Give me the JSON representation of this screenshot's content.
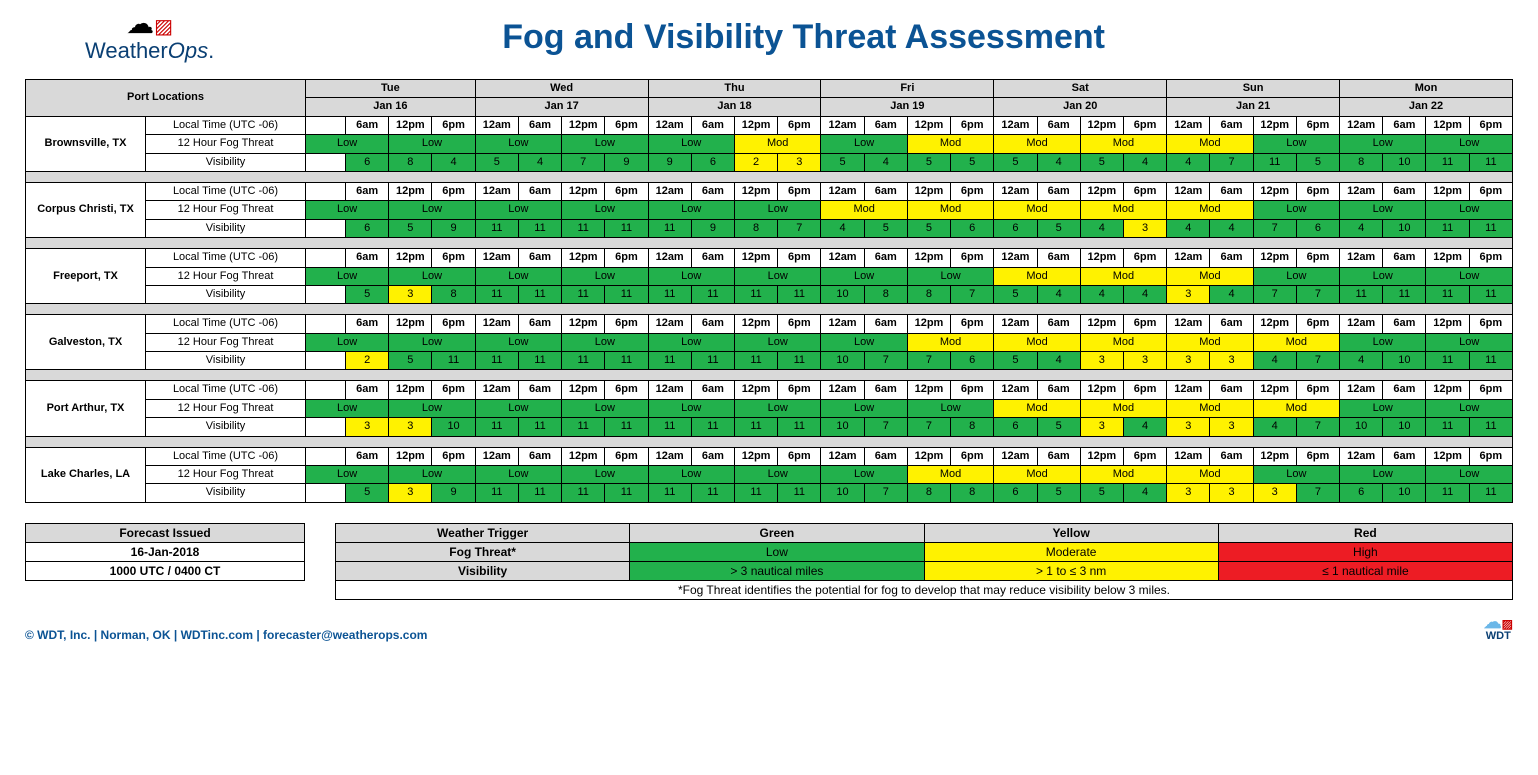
{
  "header": {
    "logo_primary": "Weather",
    "logo_secondary": "Ops",
    "title": "Fog and Visibility Threat Assessment"
  },
  "columns": {
    "port_locations": "Port Locations",
    "days": [
      {
        "name": "Tue",
        "date": "Jan 16",
        "times": [
          "6am",
          "12pm",
          "6pm"
        ]
      },
      {
        "name": "Wed",
        "date": "Jan 17",
        "times": [
          "12am",
          "6am",
          "12pm",
          "6pm"
        ]
      },
      {
        "name": "Thu",
        "date": "Jan 18",
        "times": [
          "12am",
          "6am",
          "12pm",
          "6pm"
        ]
      },
      {
        "name": "Fri",
        "date": "Jan 19",
        "times": [
          "12am",
          "6am",
          "12pm",
          "6pm"
        ]
      },
      {
        "name": "Sat",
        "date": "Jan 20",
        "times": [
          "12am",
          "6am",
          "12pm",
          "6pm"
        ]
      },
      {
        "name": "Sun",
        "date": "Jan 21",
        "times": [
          "12am",
          "6am",
          "12pm",
          "6pm"
        ]
      },
      {
        "name": "Mon",
        "date": "Jan 22",
        "times": [
          "12am",
          "6am",
          "12pm",
          "6pm"
        ]
      }
    ]
  },
  "row_labels": {
    "time": "Local Time (UTC -06)",
    "fog": "12 Hour Fog Threat",
    "vis": "Visibility"
  },
  "ports": [
    {
      "name": "Brownsville, TX",
      "fog": [
        [
          "Low",
          "g"
        ],
        [
          "Low",
          "g"
        ],
        [
          "Low",
          "g"
        ],
        [
          "Low",
          "g"
        ],
        [
          "Low",
          "g"
        ],
        [
          "Mod",
          "y"
        ],
        [
          "Low",
          "g"
        ],
        [
          "Mod",
          "y"
        ],
        [
          "Mod",
          "y"
        ],
        [
          "Mod",
          "y"
        ],
        [
          "Mod",
          "y"
        ],
        [
          "Low",
          "g"
        ],
        [
          "Low",
          "g"
        ],
        [
          "Low",
          "g"
        ]
      ],
      "vis": [
        [
          "6",
          "g"
        ],
        [
          "8",
          "g"
        ],
        [
          "4",
          "g"
        ],
        [
          "5",
          "g"
        ],
        [
          "4",
          "g"
        ],
        [
          "7",
          "g"
        ],
        [
          "9",
          "g"
        ],
        [
          "9",
          "g"
        ],
        [
          "6",
          "g"
        ],
        [
          "2",
          "y"
        ],
        [
          "3",
          "y"
        ],
        [
          "5",
          "g"
        ],
        [
          "4",
          "g"
        ],
        [
          "5",
          "g"
        ],
        [
          "5",
          "g"
        ],
        [
          "5",
          "g"
        ],
        [
          "4",
          "g"
        ],
        [
          "5",
          "g"
        ],
        [
          "4",
          "g"
        ],
        [
          "4",
          "g"
        ],
        [
          "7",
          "g"
        ],
        [
          "11",
          "g"
        ],
        [
          "5",
          "g"
        ],
        [
          "8",
          "g"
        ],
        [
          "10",
          "g"
        ],
        [
          "11",
          "g"
        ],
        [
          "11",
          "g"
        ]
      ]
    },
    {
      "name": "Corpus Christi, TX",
      "fog": [
        [
          "Low",
          "g"
        ],
        [
          "Low",
          "g"
        ],
        [
          "Low",
          "g"
        ],
        [
          "Low",
          "g"
        ],
        [
          "Low",
          "g"
        ],
        [
          "Low",
          "g"
        ],
        [
          "Mod",
          "y"
        ],
        [
          "Mod",
          "y"
        ],
        [
          "Mod",
          "y"
        ],
        [
          "Mod",
          "y"
        ],
        [
          "Mod",
          "y"
        ],
        [
          "Low",
          "g"
        ],
        [
          "Low",
          "g"
        ],
        [
          "Low",
          "g"
        ]
      ],
      "vis": [
        [
          "6",
          "g"
        ],
        [
          "5",
          "g"
        ],
        [
          "9",
          "g"
        ],
        [
          "11",
          "g"
        ],
        [
          "11",
          "g"
        ],
        [
          "11",
          "g"
        ],
        [
          "11",
          "g"
        ],
        [
          "11",
          "g"
        ],
        [
          "9",
          "g"
        ],
        [
          "8",
          "g"
        ],
        [
          "7",
          "g"
        ],
        [
          "4",
          "g"
        ],
        [
          "5",
          "g"
        ],
        [
          "5",
          "g"
        ],
        [
          "6",
          "g"
        ],
        [
          "6",
          "g"
        ],
        [
          "5",
          "g"
        ],
        [
          "4",
          "g"
        ],
        [
          "3",
          "y"
        ],
        [
          "4",
          "g"
        ],
        [
          "4",
          "g"
        ],
        [
          "7",
          "g"
        ],
        [
          "6",
          "g"
        ],
        [
          "4",
          "g"
        ],
        [
          "10",
          "g"
        ],
        [
          "11",
          "g"
        ],
        [
          "11",
          "g"
        ]
      ]
    },
    {
      "name": "Freeport, TX",
      "fog": [
        [
          "Low",
          "g"
        ],
        [
          "Low",
          "g"
        ],
        [
          "Low",
          "g"
        ],
        [
          "Low",
          "g"
        ],
        [
          "Low",
          "g"
        ],
        [
          "Low",
          "g"
        ],
        [
          "Low",
          "g"
        ],
        [
          "Low",
          "g"
        ],
        [
          "Mod",
          "y"
        ],
        [
          "Mod",
          "y"
        ],
        [
          "Mod",
          "y"
        ],
        [
          "Low",
          "g"
        ],
        [
          "Low",
          "g"
        ],
        [
          "Low",
          "g"
        ]
      ],
      "vis": [
        [
          "5",
          "g"
        ],
        [
          "3",
          "y"
        ],
        [
          "8",
          "g"
        ],
        [
          "11",
          "g"
        ],
        [
          "11",
          "g"
        ],
        [
          "11",
          "g"
        ],
        [
          "11",
          "g"
        ],
        [
          "11",
          "g"
        ],
        [
          "11",
          "g"
        ],
        [
          "11",
          "g"
        ],
        [
          "11",
          "g"
        ],
        [
          "10",
          "g"
        ],
        [
          "8",
          "g"
        ],
        [
          "8",
          "g"
        ],
        [
          "7",
          "g"
        ],
        [
          "5",
          "g"
        ],
        [
          "4",
          "g"
        ],
        [
          "4",
          "g"
        ],
        [
          "4",
          "g"
        ],
        [
          "3",
          "y"
        ],
        [
          "4",
          "g"
        ],
        [
          "7",
          "g"
        ],
        [
          "7",
          "g"
        ],
        [
          "11",
          "g"
        ],
        [
          "11",
          "g"
        ],
        [
          "11",
          "g"
        ],
        [
          "11",
          "g"
        ]
      ]
    },
    {
      "name": "Galveston, TX",
      "fog": [
        [
          "Low",
          "g"
        ],
        [
          "Low",
          "g"
        ],
        [
          "Low",
          "g"
        ],
        [
          "Low",
          "g"
        ],
        [
          "Low",
          "g"
        ],
        [
          "Low",
          "g"
        ],
        [
          "Low",
          "g"
        ],
        [
          "Mod",
          "y"
        ],
        [
          "Mod",
          "y"
        ],
        [
          "Mod",
          "y"
        ],
        [
          "Mod",
          "y"
        ],
        [
          "Mod",
          "y"
        ],
        [
          "Low",
          "g"
        ],
        [
          "Low",
          "g"
        ]
      ],
      "vis": [
        [
          "2",
          "y"
        ],
        [
          "5",
          "g"
        ],
        [
          "11",
          "g"
        ],
        [
          "11",
          "g"
        ],
        [
          "11",
          "g"
        ],
        [
          "11",
          "g"
        ],
        [
          "11",
          "g"
        ],
        [
          "11",
          "g"
        ],
        [
          "11",
          "g"
        ],
        [
          "11",
          "g"
        ],
        [
          "11",
          "g"
        ],
        [
          "10",
          "g"
        ],
        [
          "7",
          "g"
        ],
        [
          "7",
          "g"
        ],
        [
          "6",
          "g"
        ],
        [
          "5",
          "g"
        ],
        [
          "4",
          "g"
        ],
        [
          "3",
          "y"
        ],
        [
          "3",
          "y"
        ],
        [
          "3",
          "y"
        ],
        [
          "3",
          "y"
        ],
        [
          "4",
          "g"
        ],
        [
          "7",
          "g"
        ],
        [
          "4",
          "g"
        ],
        [
          "10",
          "g"
        ],
        [
          "11",
          "g"
        ],
        [
          "11",
          "g"
        ]
      ]
    },
    {
      "name": "Port Arthur, TX",
      "fog": [
        [
          "Low",
          "g"
        ],
        [
          "Low",
          "g"
        ],
        [
          "Low",
          "g"
        ],
        [
          "Low",
          "g"
        ],
        [
          "Low",
          "g"
        ],
        [
          "Low",
          "g"
        ],
        [
          "Low",
          "g"
        ],
        [
          "Low",
          "g"
        ],
        [
          "Mod",
          "y"
        ],
        [
          "Mod",
          "y"
        ],
        [
          "Mod",
          "y"
        ],
        [
          "Mod",
          "y"
        ],
        [
          "Low",
          "g"
        ],
        [
          "Low",
          "g"
        ]
      ],
      "vis": [
        [
          "3",
          "y"
        ],
        [
          "3",
          "y"
        ],
        [
          "10",
          "g"
        ],
        [
          "11",
          "g"
        ],
        [
          "11",
          "g"
        ],
        [
          "11",
          "g"
        ],
        [
          "11",
          "g"
        ],
        [
          "11",
          "g"
        ],
        [
          "11",
          "g"
        ],
        [
          "11",
          "g"
        ],
        [
          "11",
          "g"
        ],
        [
          "10",
          "g"
        ],
        [
          "7",
          "g"
        ],
        [
          "7",
          "g"
        ],
        [
          "8",
          "g"
        ],
        [
          "6",
          "g"
        ],
        [
          "5",
          "g"
        ],
        [
          "3",
          "y"
        ],
        [
          "4",
          "g"
        ],
        [
          "3",
          "y"
        ],
        [
          "3",
          "y"
        ],
        [
          "4",
          "g"
        ],
        [
          "7",
          "g"
        ],
        [
          "10",
          "g"
        ],
        [
          "10",
          "g"
        ],
        [
          "11",
          "g"
        ],
        [
          "11",
          "g"
        ]
      ]
    },
    {
      "name": "Lake Charles, LA",
      "fog": [
        [
          "Low",
          "g"
        ],
        [
          "Low",
          "g"
        ],
        [
          "Low",
          "g"
        ],
        [
          "Low",
          "g"
        ],
        [
          "Low",
          "g"
        ],
        [
          "Low",
          "g"
        ],
        [
          "Low",
          "g"
        ],
        [
          "Mod",
          "y"
        ],
        [
          "Mod",
          "y"
        ],
        [
          "Mod",
          "y"
        ],
        [
          "Mod",
          "y"
        ],
        [
          "Low",
          "g"
        ],
        [
          "Low",
          "g"
        ],
        [
          "Low",
          "g"
        ]
      ],
      "vis": [
        [
          "5",
          "g"
        ],
        [
          "3",
          "y"
        ],
        [
          "9",
          "g"
        ],
        [
          "11",
          "g"
        ],
        [
          "11",
          "g"
        ],
        [
          "11",
          "g"
        ],
        [
          "11",
          "g"
        ],
        [
          "11",
          "g"
        ],
        [
          "11",
          "g"
        ],
        [
          "11",
          "g"
        ],
        [
          "11",
          "g"
        ],
        [
          "10",
          "g"
        ],
        [
          "7",
          "g"
        ],
        [
          "8",
          "g"
        ],
        [
          "8",
          "g"
        ],
        [
          "6",
          "g"
        ],
        [
          "5",
          "g"
        ],
        [
          "5",
          "g"
        ],
        [
          "4",
          "g"
        ],
        [
          "3",
          "y"
        ],
        [
          "3",
          "y"
        ],
        [
          "3",
          "y"
        ],
        [
          "7",
          "g"
        ],
        [
          "6",
          "g"
        ],
        [
          "10",
          "g"
        ],
        [
          "11",
          "g"
        ],
        [
          "11",
          "g"
        ]
      ]
    }
  ],
  "issued": {
    "header": "Forecast Issued",
    "date": "16-Jan-2018",
    "time": "1000 UTC / 0400 CT"
  },
  "legend": {
    "headers": [
      "Weather Trigger",
      "Green",
      "Yellow",
      "Red"
    ],
    "rows": [
      {
        "label": "Fog Threat*",
        "green": "Low",
        "yellow": "Moderate",
        "red": "High"
      },
      {
        "label": "Visibility",
        "green": "> 3 nautical miles",
        "yellow": "> 1 to ≤ 3 nm",
        "red": "≤ 1 nautical mile"
      }
    ],
    "note": "*Fog Threat identifies the potential for fog to develop that may reduce visibility below 3 miles."
  },
  "footer": {
    "copyright": "© WDT, Inc. | Norman, OK | WDTinc.com | forecaster@weatherops.com",
    "brand": "WDT"
  },
  "colors": {
    "g": "green",
    "y": "yellow",
    "r": "red"
  }
}
